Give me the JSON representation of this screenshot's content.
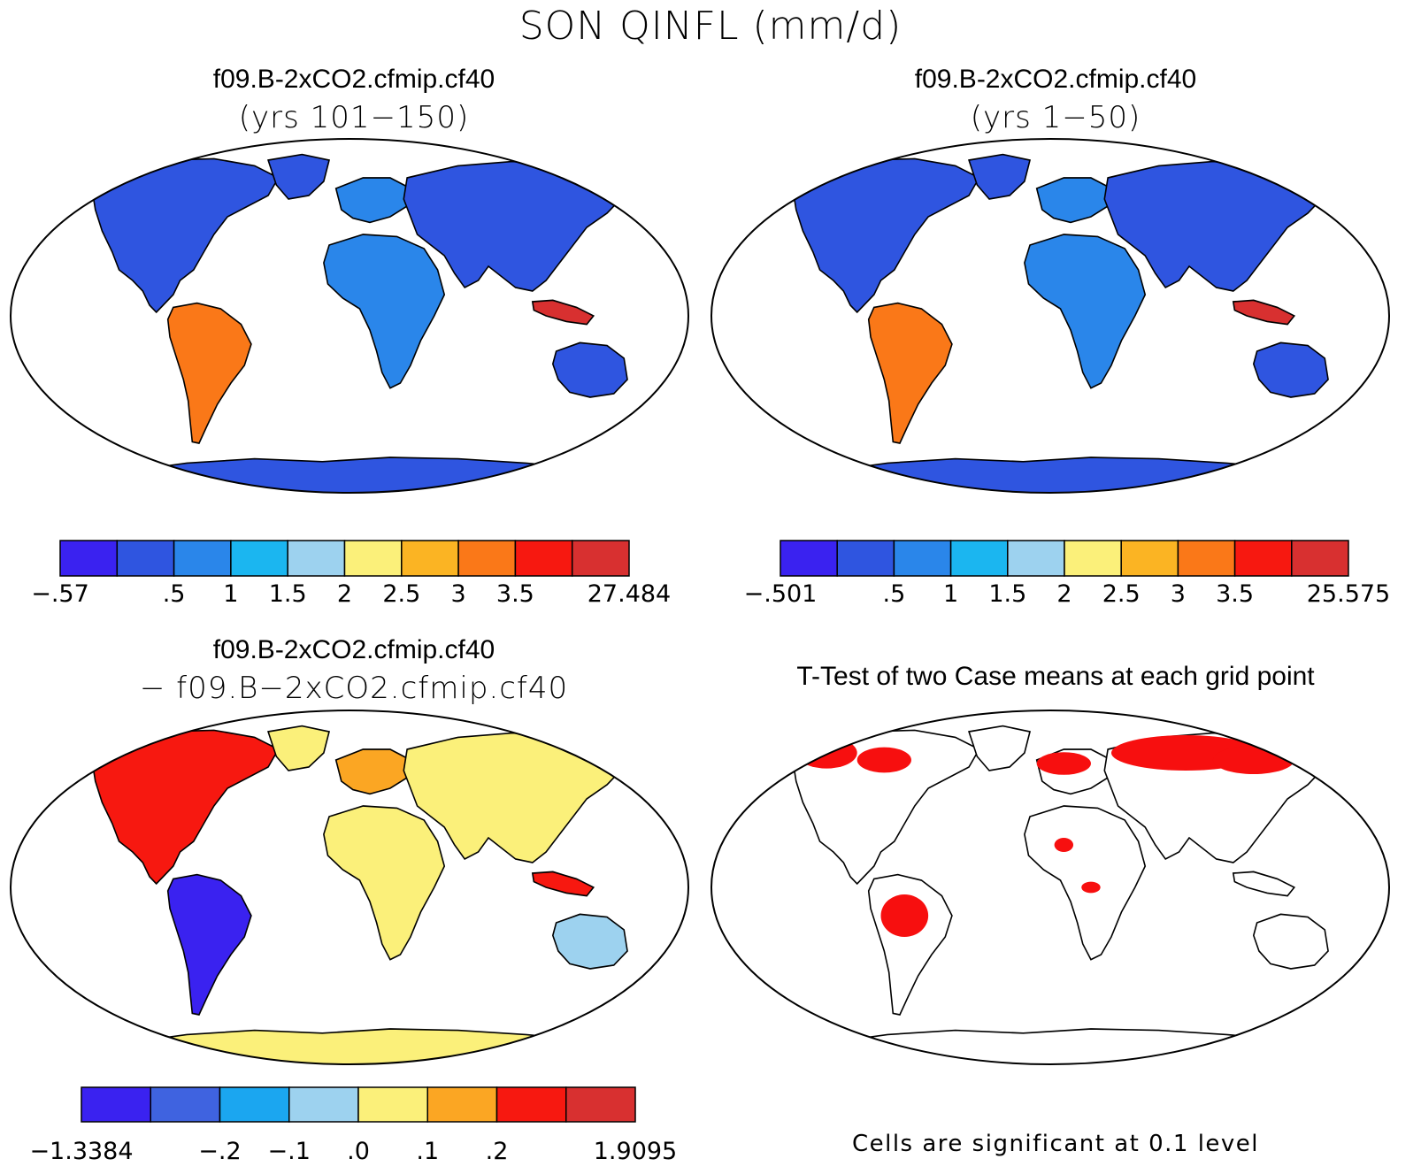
{
  "figure": {
    "title": "SON QINFL (mm/d)"
  },
  "panels": [
    {
      "id": "case1",
      "title": "f09.B-2xCO2.cfmip.cf40",
      "subtitle": "(yrs 101−150)",
      "colorbar": {
        "colors": [
          "#3a22f0",
          "#2f55e0",
          "#2a86ea",
          "#1bb6f0",
          "#9dd2ef",
          "#fbf07a",
          "#fbb423",
          "#fa7818",
          "#f71810",
          "#d83030"
        ],
        "tick_labels": [
          "−.57",
          ".5",
          "1",
          "1.5",
          "2",
          "2.5",
          "3",
          "3.5",
          "27.484"
        ],
        "min": -0.57,
        "levels": [
          0.5,
          1,
          1.5,
          2,
          2.5,
          3,
          3.5
        ],
        "max": 27.484
      }
    },
    {
      "id": "case2",
      "title": "f09.B-2xCO2.cfmip.cf40",
      "subtitle": "(yrs 1−50)",
      "colorbar": {
        "colors": [
          "#3a22f0",
          "#2f55e0",
          "#2a86ea",
          "#1bb6f0",
          "#9dd2ef",
          "#fbf07a",
          "#fbb423",
          "#fa7818",
          "#f71810",
          "#d83030"
        ],
        "tick_labels": [
          "−.501",
          ".5",
          "1",
          "1.5",
          "2",
          "2.5",
          "3",
          "3.5",
          "25.575"
        ],
        "min": -0.501,
        "levels": [
          0.5,
          1,
          1.5,
          2,
          2.5,
          3,
          3.5
        ],
        "max": 25.575
      }
    },
    {
      "id": "difference",
      "title": "f09.B-2xCO2.cfmip.cf40",
      "subtitle": "− f09.B−2xCO2.cfmip.cf40",
      "colorbar": {
        "colors": [
          "#3a22f0",
          "#3f63e0",
          "#1ba6f0",
          "#9dd2ef",
          "#fbf07a",
          "#fba623",
          "#f71810",
          "#d83030"
        ],
        "tick_labels": [
          "−1.3384",
          "−.2",
          "−.1",
          ".0",
          ".1",
          ".2",
          "1.9095"
        ],
        "min": -1.3384,
        "levels": [
          -0.2,
          -0.1,
          0.0,
          0.1,
          0.2
        ],
        "max": 1.9095
      }
    },
    {
      "id": "ttest",
      "title": "T-Test of two Case means at each grid point",
      "note": "Cells are significant at 0.1 level",
      "significant_color": "#f70f0f"
    }
  ],
  "ocean_color": "#ffffff",
  "land_outline_color": "#000000"
}
